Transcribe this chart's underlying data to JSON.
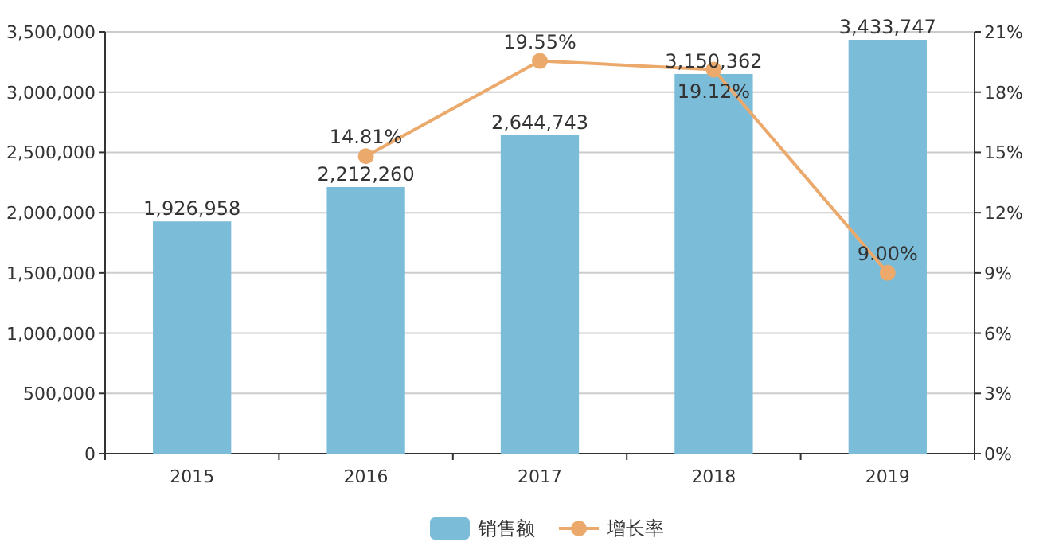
{
  "chart_data": {
    "type": "bar",
    "categories": [
      "2015",
      "2016",
      "2017",
      "2018",
      "2019"
    ],
    "series": [
      {
        "name": "销售额",
        "color": "#7bbdd9",
        "values": [
          1926958,
          2212260,
          2644743,
          3150362,
          3433747
        ],
        "value_labels": [
          "1,926,958",
          "2,212,260",
          "2,644,743",
          "3,150,362",
          "3,433,747"
        ]
      },
      {
        "name": "增长率",
        "type": "line",
        "axis": "y2",
        "marker": "circle",
        "color": "#eba96c",
        "values": [
          null,
          14.81,
          19.55,
          19.12,
          9.0
        ],
        "value_labels": [
          null,
          "14.81%",
          "19.55%",
          "19.12%",
          "9.00%"
        ]
      }
    ],
    "ylim": [
      0,
      3500000
    ],
    "yticks": [
      {
        "value": 0,
        "label": "0"
      },
      {
        "value": 500000,
        "label": "500,000"
      },
      {
        "value": 1000000,
        "label": "1,000,000"
      },
      {
        "value": 1500000,
        "label": "1,500,000"
      },
      {
        "value": 2000000,
        "label": "2,000,000"
      },
      {
        "value": 2500000,
        "label": "2,500,000"
      },
      {
        "value": 3000000,
        "label": "3,000,000"
      },
      {
        "value": 3500000,
        "label": "3,500,000"
      }
    ],
    "y2lim": [
      0,
      21
    ],
    "y2ticks": [
      {
        "value": 0,
        "label": "0%"
      },
      {
        "value": 3,
        "label": "3%"
      },
      {
        "value": 6,
        "label": "6%"
      },
      {
        "value": 9,
        "label": "9%"
      },
      {
        "value": 12,
        "label": "12%"
      },
      {
        "value": 15,
        "label": "15%"
      },
      {
        "value": 18,
        "label": "18%"
      },
      {
        "value": 21,
        "label": "21%"
      }
    ],
    "grid": "y",
    "legend": "bottom"
  }
}
